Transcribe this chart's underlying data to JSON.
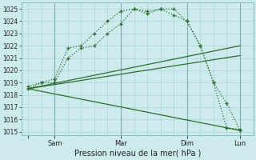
{
  "xlabel": "Pression niveau de la mer( hPa )",
  "bg_color": "#cdeaed",
  "grid_color_major": "#a8cdd1",
  "grid_color_minor": "#bcdde0",
  "line_color": "#2d6e2d",
  "ylim": [
    1014.7,
    1025.5
  ],
  "yticks": [
    1015,
    1016,
    1017,
    1018,
    1019,
    1020,
    1021,
    1022,
    1023,
    1024,
    1025
  ],
  "xtick_labels": [
    "",
    "Sam",
    "Mar",
    "Dim",
    "Lun"
  ],
  "curve1_x": [
    0,
    1,
    2,
    3,
    4,
    5,
    6,
    7,
    8,
    9,
    10,
    11,
    12,
    13,
    14,
    15,
    16
  ],
  "curve1_y": [
    1018.5,
    1019.0,
    1019.0,
    1021.0,
    1021.8,
    1022.0,
    1023.0,
    1023.8,
    1025.0,
    1024.8,
    1025.0,
    1025.0,
    1024.0,
    1022.0,
    1019.0,
    1017.3,
    1015.1
  ],
  "curve2_x": [
    0,
    1,
    2,
    3,
    4,
    5,
    6,
    7,
    8,
    9,
    10,
    11,
    12,
    13,
    14,
    15,
    16
  ],
  "curve2_y": [
    1018.7,
    1019.0,
    1019.3,
    1021.8,
    1022.0,
    1023.0,
    1024.0,
    1024.8,
    1025.0,
    1024.6,
    1025.0,
    1024.5,
    1024.0,
    1022.0,
    1019.0,
    1015.3,
    1015.2
  ],
  "line1_x": [
    0,
    16
  ],
  "line1_y": [
    1018.5,
    1015.1
  ],
  "line2_x": [
    0,
    16
  ],
  "line2_y": [
    1018.5,
    1022.0
  ],
  "line3_x": [
    0,
    16
  ],
  "line3_y": [
    1018.5,
    1021.2
  ],
  "vline_positions": [
    2,
    7,
    12,
    16
  ],
  "xtick_positions": [
    0,
    2,
    7,
    12,
    16
  ],
  "xlim": [
    -0.5,
    17
  ]
}
